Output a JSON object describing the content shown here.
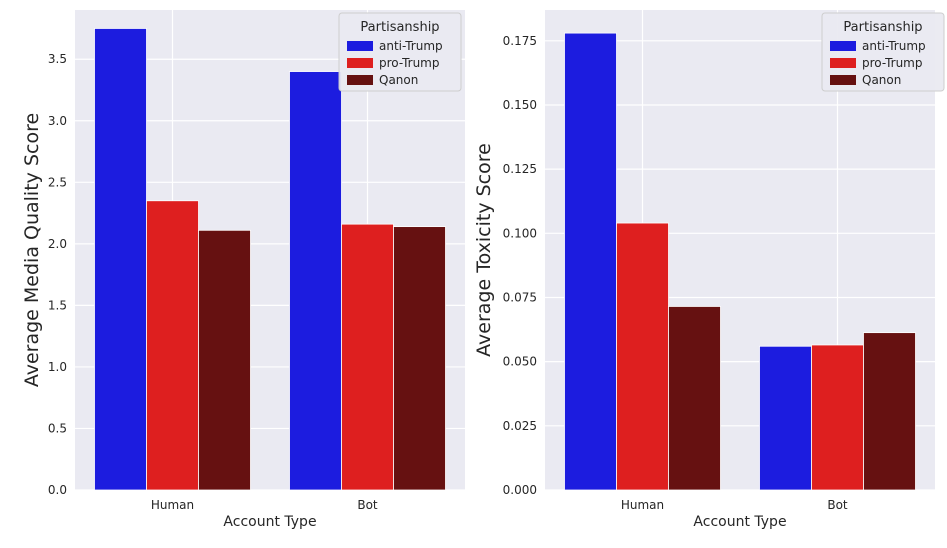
{
  "chart_data": [
    {
      "type": "bar",
      "categories": [
        "Human",
        "Bot"
      ],
      "xlabel": "Account Type",
      "ylabel": "Average Media Quality Score",
      "ylim": [
        0,
        3.9
      ],
      "yticks": [
        0.0,
        0.5,
        1.0,
        1.5,
        2.0,
        2.5,
        3.0,
        3.5
      ],
      "ytick_labels": [
        "0.0",
        "0.5",
        "1.0",
        "1.5",
        "2.0",
        "2.5",
        "3.0",
        "3.5"
      ],
      "grid": true,
      "legend": {
        "title": "Partisanship",
        "placement": "top-right"
      },
      "series": [
        {
          "name": "anti-Trump",
          "color": "#1c1cdf",
          "values": [
            3.75,
            3.4
          ]
        },
        {
          "name": "pro-Trump",
          "color": "#de1f1f",
          "values": [
            2.35,
            2.16
          ]
        },
        {
          "name": "Qanon",
          "color": "#661111",
          "values": [
            2.11,
            2.14
          ]
        }
      ]
    },
    {
      "type": "bar",
      "categories": [
        "Human",
        "Bot"
      ],
      "xlabel": "Account Type",
      "ylabel": "Average Toxicity Score",
      "ylim": [
        0,
        0.187
      ],
      "yticks": [
        0.0,
        0.025,
        0.05,
        0.075,
        0.1,
        0.125,
        0.15,
        0.175
      ],
      "ytick_labels": [
        "0.000",
        "0.025",
        "0.050",
        "0.075",
        "0.100",
        "0.125",
        "0.150",
        "0.175"
      ],
      "grid": true,
      "legend": {
        "title": "Partisanship",
        "placement": "top-right"
      },
      "series": [
        {
          "name": "anti-Trump",
          "color": "#1c1cdf",
          "values": [
            0.178,
            0.056
          ]
        },
        {
          "name": "pro-Trump",
          "color": "#de1f1f",
          "values": [
            0.104,
            0.0565
          ]
        },
        {
          "name": "Qanon",
          "color": "#661111",
          "values": [
            0.0715,
            0.0613
          ]
        }
      ]
    }
  ]
}
